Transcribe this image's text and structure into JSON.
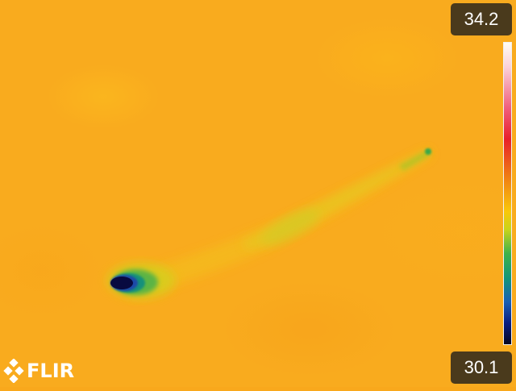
{
  "thermal_view": {
    "scale_max": "34.2",
    "scale_min": "30.1",
    "logo_text": "FLIR",
    "palette": [
      "#060620",
      "#0a1e80",
      "#1a5fb4",
      "#149678",
      "#3fb24a",
      "#c8d41a",
      "#f9c80a",
      "#ef7a14",
      "#e8202a",
      "#f05c7a",
      "#fbd2d8",
      "#fffdf6"
    ],
    "background_color": "#f9ab1e"
  }
}
